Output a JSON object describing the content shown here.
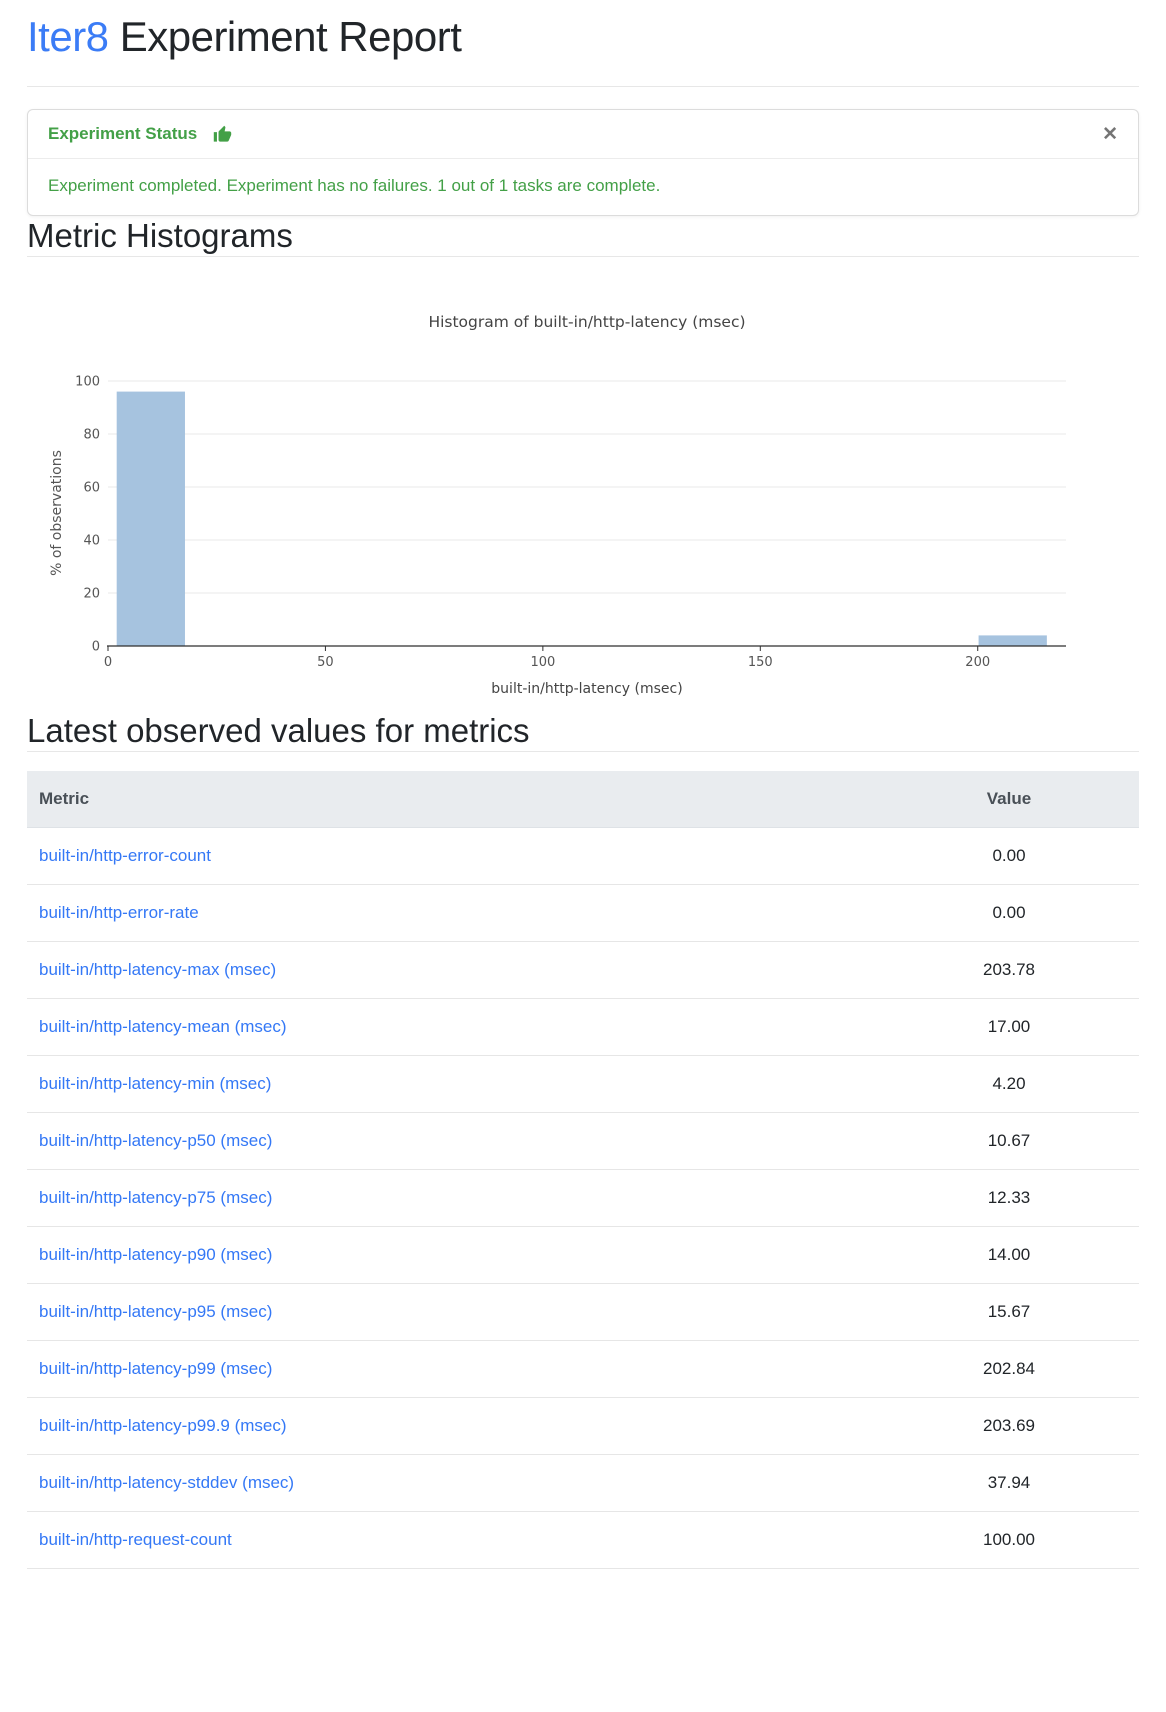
{
  "page": {
    "title_brand": "Iter8",
    "title_rest": " Experiment Report"
  },
  "status_alert": {
    "header": "Experiment Status",
    "close_label": "✕",
    "message": "Experiment completed. Experiment has no failures. 1 out of 1 tasks are complete.",
    "green": "#43a047"
  },
  "sections": {
    "histograms_title": "Metric Histograms",
    "latest_values_title": "Latest observed values for metrics"
  },
  "chart_data": {
    "type": "bar",
    "title": "Histogram of built-in/http-latency (msec)",
    "xlabel": "built-in/http-latency (msec)",
    "ylabel": "% of observations",
    "xlim": [
      0,
      220.3
    ],
    "ylim": [
      0,
      100
    ],
    "x_ticks": [
      0,
      50,
      100,
      150,
      200
    ],
    "y_ticks": [
      0,
      20,
      40,
      60,
      80,
      100
    ],
    "grid": "horizontal",
    "legend": "none",
    "bar_color": "#a6c3df",
    "bars": [
      {
        "x0": 2.0,
        "x1": 17.7,
        "pct": 96
      },
      {
        "x0": 200.2,
        "x1": 215.9,
        "pct": 4
      }
    ]
  },
  "metrics_table": {
    "headers": [
      "Metric",
      "Value"
    ],
    "rows": [
      {
        "metric": "built-in/http-error-count",
        "value": "0.00"
      },
      {
        "metric": "built-in/http-error-rate",
        "value": "0.00"
      },
      {
        "metric": "built-in/http-latency-max (msec)",
        "value": "203.78"
      },
      {
        "metric": "built-in/http-latency-mean (msec)",
        "value": "17.00"
      },
      {
        "metric": "built-in/http-latency-min (msec)",
        "value": "4.20"
      },
      {
        "metric": "built-in/http-latency-p50 (msec)",
        "value": "10.67"
      },
      {
        "metric": "built-in/http-latency-p75 (msec)",
        "value": "12.33"
      },
      {
        "metric": "built-in/http-latency-p90 (msec)",
        "value": "14.00"
      },
      {
        "metric": "built-in/http-latency-p95 (msec)",
        "value": "15.67"
      },
      {
        "metric": "built-in/http-latency-p99 (msec)",
        "value": "202.84"
      },
      {
        "metric": "built-in/http-latency-p99.9 (msec)",
        "value": "203.69"
      },
      {
        "metric": "built-in/http-latency-stddev (msec)",
        "value": "37.94"
      },
      {
        "metric": "built-in/http-request-count",
        "value": "100.00"
      }
    ]
  }
}
